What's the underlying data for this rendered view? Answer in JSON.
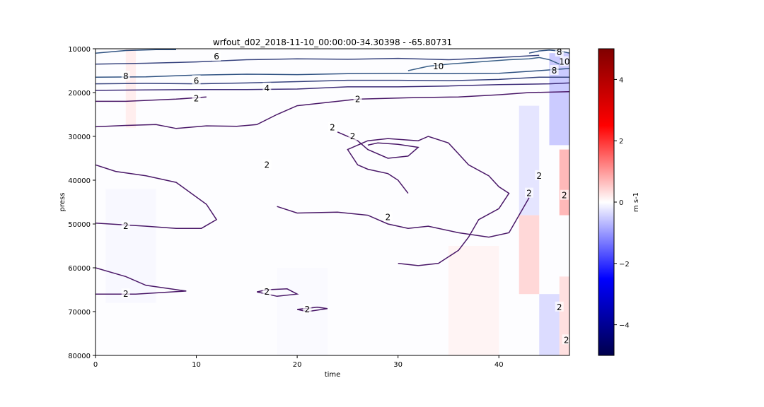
{
  "chart_data": {
    "type": "heatmap",
    "title": "wrfout_d02_2018-11-10_00:00:00-34.30398 - -65.80731",
    "xlabel": "time",
    "ylabel": "press",
    "xlim": [
      0,
      47
    ],
    "ylim": [
      80000,
      10000
    ],
    "y_inverted": true,
    "xticks": [
      "0",
      "10",
      "20",
      "30",
      "40"
    ],
    "yticks": [
      "10000",
      "20000",
      "30000",
      "40000",
      "50000",
      "60000",
      "70000",
      "80000"
    ],
    "colorbar": {
      "label": "m s-1",
      "range": [
        -5,
        5
      ],
      "ticks": [
        "4",
        "2",
        "0",
        "−2",
        "−4"
      ],
      "colormap": "seismic",
      "colors": {
        "low": "#00004c",
        "mid": "#ffffff",
        "high": "#800000"
      }
    },
    "heat_cells": [
      {
        "t0": 42,
        "t1": 44,
        "p0": 23000,
        "p1": 48000,
        "v": -0.6
      },
      {
        "t0": 45,
        "t1": 47,
        "p0": 11000,
        "p1": 32000,
        "v": -1.2
      },
      {
        "t0": 46,
        "t1": 47,
        "p0": 33000,
        "p1": 48000,
        "v": 1.6
      },
      {
        "t0": 42,
        "t1": 44,
        "p0": 48000,
        "p1": 66000,
        "v": 0.9
      },
      {
        "t0": 44,
        "t1": 46,
        "p0": 66000,
        "p1": 80000,
        "v": -0.8
      },
      {
        "t0": 46,
        "t1": 47,
        "p0": 62000,
        "p1": 80000,
        "v": 0.7
      },
      {
        "t0": 3,
        "t1": 4,
        "p0": 10000,
        "p1": 28000,
        "v": 0.4
      },
      {
        "t0": 1,
        "t1": 6,
        "p0": 42000,
        "p1": 68000,
        "v": -0.15
      },
      {
        "t0": 18,
        "t1": 23,
        "p0": 60000,
        "p1": 80000,
        "v": -0.12
      },
      {
        "t0": 35,
        "t1": 40,
        "p0": 55000,
        "p1": 80000,
        "v": 0.25
      }
    ],
    "contour_lines": [
      {
        "level": 2,
        "points": [
          [
            0,
            22000
          ],
          [
            3,
            22000
          ],
          [
            8,
            21500
          ],
          [
            11,
            21000
          ]
        ]
      },
      {
        "level": 2,
        "points": [
          [
            0,
            27800
          ],
          [
            3,
            27500
          ],
          [
            6,
            27300
          ],
          [
            8,
            28200
          ],
          [
            11,
            27600
          ],
          [
            14,
            27700
          ],
          [
            16,
            27300
          ],
          [
            18,
            25000
          ],
          [
            20,
            23000
          ],
          [
            22,
            22500
          ],
          [
            24,
            22000
          ],
          [
            26,
            21500
          ],
          [
            31,
            21200
          ],
          [
            36,
            21000
          ],
          [
            40,
            20500
          ],
          [
            43,
            20000
          ],
          [
            47,
            19800
          ]
        ]
      },
      {
        "level": 2,
        "points": [
          [
            0,
            36500
          ],
          [
            2,
            38000
          ],
          [
            5,
            39000
          ],
          [
            8,
            40500
          ],
          [
            11,
            45500
          ],
          [
            12,
            49000
          ],
          [
            10.5,
            51000
          ],
          [
            8,
            51000
          ],
          [
            5,
            50500
          ],
          [
            0,
            49800
          ]
        ]
      },
      {
        "level": 2,
        "points": [
          [
            0,
            60000
          ],
          [
            3,
            62000
          ],
          [
            5,
            64000
          ],
          [
            9,
            65300
          ],
          [
            4,
            66000
          ],
          [
            0,
            66000
          ]
        ]
      },
      {
        "level": 2,
        "points": [
          [
            24,
            29000
          ],
          [
            26,
            31000
          ],
          [
            27,
            33000
          ],
          [
            29,
            35000
          ],
          [
            31,
            34500
          ],
          [
            32,
            32500
          ],
          [
            30,
            31800
          ],
          [
            28,
            31500
          ],
          [
            27,
            32000
          ]
        ]
      },
      {
        "level": 2,
        "points": [
          [
            31,
            43000
          ],
          [
            30,
            40000
          ],
          [
            29,
            38500
          ],
          [
            27,
            37500
          ],
          [
            26,
            36500
          ],
          [
            25,
            33000
          ],
          [
            27,
            31000
          ],
          [
            29,
            30500
          ],
          [
            32,
            31000
          ],
          [
            33,
            30000
          ],
          [
            35,
            31500
          ],
          [
            36,
            34000
          ],
          [
            37,
            36500
          ],
          [
            39,
            39000
          ],
          [
            40,
            41500
          ],
          [
            41,
            43000
          ],
          [
            40,
            46500
          ],
          [
            38,
            49000
          ],
          [
            37,
            53000
          ],
          [
            36,
            56000
          ],
          [
            34,
            59000
          ],
          [
            32,
            59500
          ],
          [
            30,
            59000
          ]
        ]
      },
      {
        "level": 2,
        "points": [
          [
            18,
            46000
          ],
          [
            20,
            47500
          ],
          [
            24,
            47300
          ],
          [
            27,
            48000
          ],
          [
            29,
            50000
          ],
          [
            31,
            51000
          ],
          [
            33,
            50500
          ],
          [
            36,
            52000
          ],
          [
            39,
            53000
          ],
          [
            41,
            52000
          ],
          [
            42,
            48000
          ],
          [
            43,
            44000
          ]
        ]
      },
      {
        "level": 2,
        "points": [
          [
            16,
            65500
          ],
          [
            18,
            66500
          ],
          [
            20,
            66000
          ],
          [
            19,
            64800
          ],
          [
            17,
            65000
          ],
          [
            16,
            65500
          ]
        ]
      },
      {
        "level": 2,
        "points": [
          [
            20,
            69500
          ],
          [
            22,
            69000
          ],
          [
            23,
            69300
          ],
          [
            21,
            70000
          ],
          [
            20,
            69500
          ]
        ]
      },
      {
        "level": 4,
        "points": [
          [
            0,
            19500
          ],
          [
            5,
            19400
          ],
          [
            10,
            19300
          ],
          [
            15,
            19300
          ],
          [
            20,
            19200
          ],
          [
            25,
            18700
          ],
          [
            30,
            18700
          ],
          [
            35,
            18500
          ],
          [
            40,
            18200
          ],
          [
            45,
            18000
          ],
          [
            47,
            17800
          ]
        ]
      },
      {
        "level": 6,
        "points": [
          [
            0,
            18000
          ],
          [
            5,
            17900
          ],
          [
            10,
            18000
          ],
          [
            15,
            17800
          ],
          [
            20,
            17500
          ],
          [
            25,
            17200
          ],
          [
            30,
            17200
          ],
          [
            35,
            17300
          ],
          [
            40,
            17000
          ],
          [
            44,
            16500
          ],
          [
            47,
            16500
          ]
        ]
      },
      {
        "level": 6,
        "points": [
          [
            0,
            13500
          ],
          [
            5,
            13300
          ],
          [
            10,
            13000
          ],
          [
            15,
            12500
          ],
          [
            20,
            12300
          ],
          [
            25,
            12400
          ],
          [
            30,
            12200
          ],
          [
            35,
            12500
          ],
          [
            40,
            12000
          ],
          [
            44,
            11500
          ]
        ]
      },
      {
        "level": 8,
        "points": [
          [
            0,
            16500
          ],
          [
            5,
            16400
          ],
          [
            10,
            16000
          ],
          [
            15,
            15800
          ],
          [
            20,
            15900
          ],
          [
            25,
            15700
          ],
          [
            30,
            15600
          ],
          [
            35,
            15700
          ],
          [
            40,
            15600
          ],
          [
            44,
            15000
          ],
          [
            47,
            14500
          ]
        ]
      },
      {
        "level": 8,
        "points": [
          [
            0,
            11000
          ],
          [
            3,
            10400
          ],
          [
            6,
            10200
          ],
          [
            8,
            10200
          ]
        ]
      },
      {
        "level": 10,
        "points": [
          [
            31,
            15000
          ],
          [
            33,
            14000
          ],
          [
            35,
            13500
          ],
          [
            38,
            13000
          ],
          [
            41,
            12500
          ],
          [
            43,
            12300
          ],
          [
            44,
            12000
          ],
          [
            45,
            12500
          ],
          [
            46,
            13500
          ]
        ]
      },
      {
        "level": 8,
        "points": [
          [
            43,
            11000
          ],
          [
            44,
            10500
          ],
          [
            45,
            10300
          ],
          [
            46,
            10500
          ],
          [
            47,
            11000
          ]
        ]
      }
    ],
    "contour_labels": [
      {
        "text": "6",
        "t": 12,
        "p": 11800
      },
      {
        "text": "10",
        "t": 34,
        "p": 14000
      },
      {
        "text": "8",
        "t": 46,
        "p": 10800
      },
      {
        "text": "10",
        "t": 46.5,
        "p": 13000
      },
      {
        "text": "8",
        "t": 45.5,
        "p": 15000
      },
      {
        "text": "8",
        "t": 3,
        "p": 16300
      },
      {
        "text": "6",
        "t": 10,
        "p": 17300
      },
      {
        "text": "4",
        "t": 17,
        "p": 19000
      },
      {
        "text": "2",
        "t": 10,
        "p": 21400
      },
      {
        "text": "2",
        "t": 26,
        "p": 21500
      },
      {
        "text": "2",
        "t": 23.5,
        "p": 28000
      },
      {
        "text": "2",
        "t": 25.5,
        "p": 30000
      },
      {
        "text": "2",
        "t": 17,
        "p": 36500
      },
      {
        "text": "2",
        "t": 44,
        "p": 39000
      },
      {
        "text": "2",
        "t": 43,
        "p": 43000
      },
      {
        "text": "2",
        "t": 46.5,
        "p": 43500
      },
      {
        "text": "2",
        "t": 29,
        "p": 48500
      },
      {
        "text": "2",
        "t": 3,
        "p": 50500
      },
      {
        "text": "2",
        "t": 3,
        "p": 66000
      },
      {
        "text": "2",
        "t": 17,
        "p": 65500
      },
      {
        "text": "2",
        "t": 21,
        "p": 69500
      },
      {
        "text": "2",
        "t": 46,
        "p": 69000
      },
      {
        "text": "2",
        "t": 46.7,
        "p": 76500
      }
    ]
  }
}
